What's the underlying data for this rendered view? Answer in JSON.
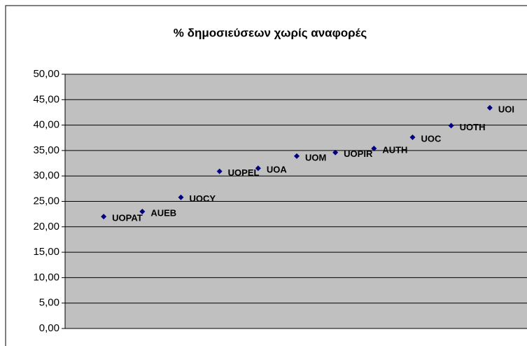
{
  "chart_data": {
    "type": "scatter",
    "title": "% δημοσιεύσεων χωρίς αναφορές",
    "x": [
      1,
      2,
      3,
      4,
      5,
      6,
      7,
      8,
      9,
      10,
      11
    ],
    "values": [
      22.0,
      23.0,
      25.8,
      30.9,
      31.5,
      33.9,
      34.6,
      35.4,
      37.6,
      39.9,
      43.4
    ],
    "labels": [
      "UOPAT",
      "AUEB",
      "UOCY",
      "UOPEL",
      "UOA",
      "UOM",
      "UOPIR",
      "AUTH",
      "UOC",
      "UOTH",
      "UOI"
    ],
    "color": "#000080",
    "xlim": [
      0,
      12
    ],
    "ylim": [
      0,
      50
    ],
    "yticks": [
      {
        "value": 0,
        "label": "0,00"
      },
      {
        "value": 5,
        "label": "5,00"
      },
      {
        "value": 10,
        "label": "10,00"
      },
      {
        "value": 15,
        "label": "15,00"
      },
      {
        "value": 20,
        "label": "20,00"
      },
      {
        "value": 25,
        "label": "25,00"
      },
      {
        "value": 30,
        "label": "30,00"
      },
      {
        "value": 35,
        "label": "35,00"
      },
      {
        "value": 40,
        "label": "40,00"
      },
      {
        "value": 45,
        "label": "45,00"
      },
      {
        "value": 50,
        "label": "50,00"
      }
    ],
    "grid": true
  }
}
